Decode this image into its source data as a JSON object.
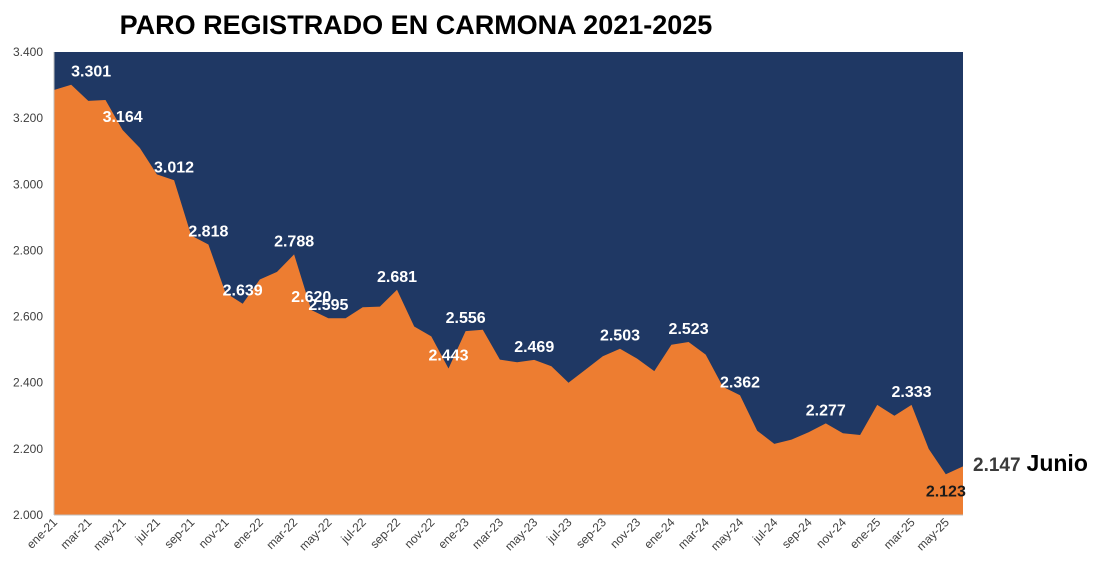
{
  "chart_data": {
    "type": "area",
    "title": "PARO REGISTRADO EN CARMONA 2021-2025",
    "xlabel": "",
    "ylabel": "",
    "ylim": [
      2000,
      3400
    ],
    "yticks": [
      2000,
      2200,
      2400,
      2600,
      2800,
      3000,
      3200,
      3400
    ],
    "ytick_labels": [
      "2.000",
      "2.200",
      "2.400",
      "2.600",
      "2.800",
      "3.000",
      "3.200",
      "3.400"
    ],
    "x": [
      "ene-21",
      "feb-21",
      "mar-21",
      "abr-21",
      "may-21",
      "jun-21",
      "jul-21",
      "ago-21",
      "sep-21",
      "oct-21",
      "nov-21",
      "dic-21",
      "ene-22",
      "feb-22",
      "mar-22",
      "abr-22",
      "may-22",
      "jun-22",
      "jul-22",
      "ago-22",
      "sep-22",
      "oct-22",
      "nov-22",
      "dic-22",
      "ene-23",
      "feb-23",
      "mar-23",
      "abr-23",
      "may-23",
      "jun-23",
      "jul-23",
      "ago-23",
      "sep-23",
      "oct-23",
      "nov-23",
      "dic-23",
      "ene-24",
      "feb-24",
      "mar-24",
      "abr-24",
      "may-24",
      "jun-24",
      "jul-24",
      "ago-24",
      "sep-24",
      "oct-24",
      "nov-24",
      "dic-24",
      "ene-25",
      "feb-25",
      "mar-25",
      "abr-25",
      "may-25",
      "jun-25"
    ],
    "x_tick_labels": [
      "ene-21",
      "mar-21",
      "may-21",
      "jul-21",
      "sep-21",
      "nov-21",
      "ene-22",
      "mar-22",
      "may-22",
      "jul-22",
      "sep-22",
      "nov-22",
      "ene-23",
      "mar-23",
      "may-23",
      "jul-23",
      "sep-23",
      "nov-23",
      "ene-24",
      "mar-24",
      "may-24",
      "jul-24",
      "sep-24",
      "nov-24",
      "ene-25",
      "mar-25",
      "may-25"
    ],
    "values": [
      3285,
      3301,
      3252,
      3255,
      3164,
      3110,
      3030,
      3012,
      2845,
      2818,
      2672,
      2639,
      2712,
      2735,
      2788,
      2620,
      2595,
      2595,
      2628,
      2630,
      2681,
      2570,
      2540,
      2443,
      2556,
      2560,
      2470,
      2462,
      2469,
      2450,
      2400,
      2440,
      2480,
      2503,
      2473,
      2435,
      2515,
      2523,
      2485,
      2388,
      2362,
      2255,
      2215,
      2228,
      2250,
      2277,
      2247,
      2242,
      2333,
      2300,
      2333,
      2200,
      2123,
      2147
    ],
    "data_labels": [
      {
        "index": 1,
        "text": "3.301",
        "color": "#ffffff"
      },
      {
        "index": 4,
        "text": "3.164",
        "color": "#ffffff"
      },
      {
        "index": 7,
        "text": "3.012",
        "color": "#ffffff"
      },
      {
        "index": 9,
        "text": "2.818",
        "color": "#ffffff"
      },
      {
        "index": 11,
        "text": "2.639",
        "color": "#ffffff"
      },
      {
        "index": 14,
        "text": "2.788",
        "color": "#ffffff"
      },
      {
        "index": 15,
        "text": "2.620",
        "color": "#ffffff"
      },
      {
        "index": 16,
        "text": "2.595",
        "color": "#ffffff"
      },
      {
        "index": 20,
        "text": "2.681",
        "color": "#ffffff"
      },
      {
        "index": 23,
        "text": "2.443",
        "color": "#ffffff"
      },
      {
        "index": 24,
        "text": "2.556",
        "color": "#ffffff"
      },
      {
        "index": 28,
        "text": "2.469",
        "color": "#ffffff"
      },
      {
        "index": 33,
        "text": "2.503",
        "color": "#ffffff"
      },
      {
        "index": 37,
        "text": "2.523",
        "color": "#ffffff"
      },
      {
        "index": 40,
        "text": "2.362",
        "color": "#ffffff"
      },
      {
        "index": 45,
        "text": "2.277",
        "color": "#ffffff"
      },
      {
        "index": 50,
        "text": "2.333",
        "color": "#ffffff"
      },
      {
        "index": 52,
        "text": "2.123",
        "color": "#1a1a1a"
      }
    ],
    "grid": false,
    "colors": {
      "area": "#ed7d31",
      "background": "#1f3864"
    }
  },
  "annotation": {
    "value": "2.147",
    "month": "Junio"
  }
}
